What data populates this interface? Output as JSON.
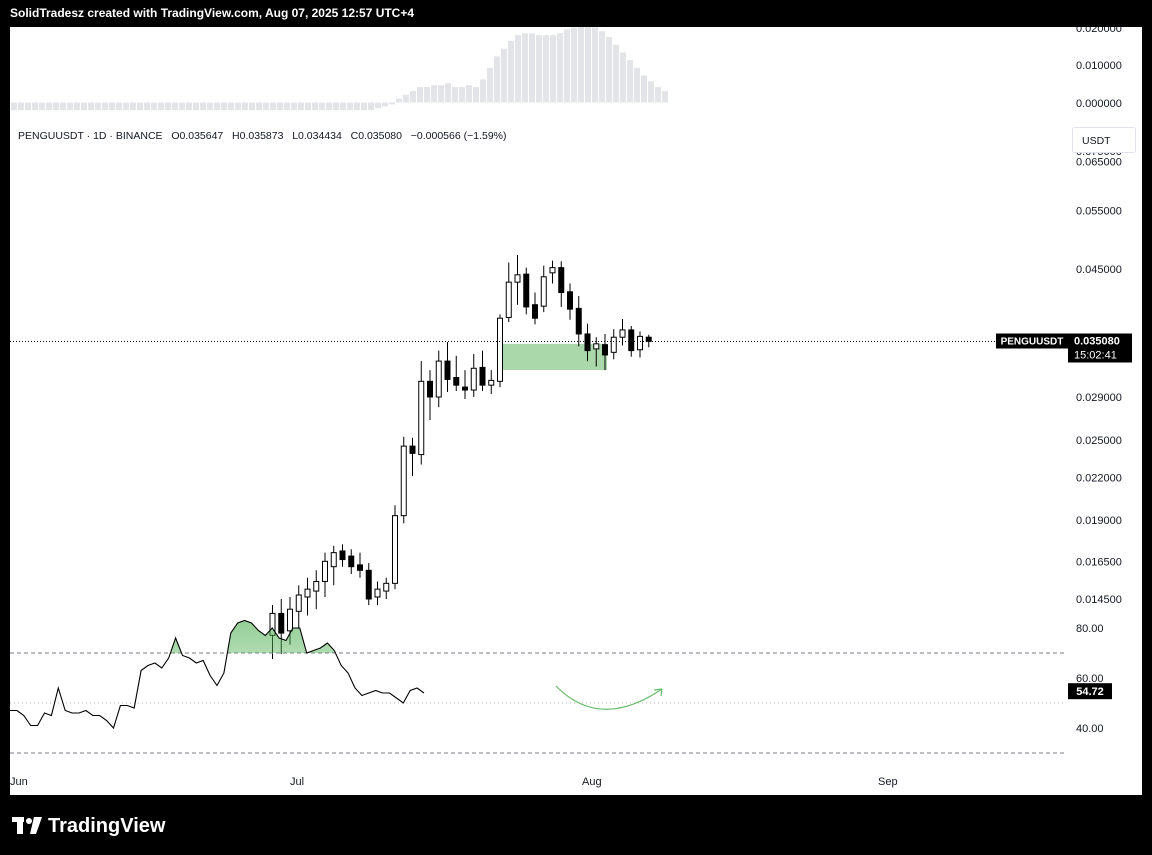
{
  "header": {
    "caption": "SolidTradesz created with TradingView.com, Aug 07, 2025 12:57 UTC+4"
  },
  "legend": {
    "symbol": "PENGUUSDT",
    "interval": "1D",
    "exchange": "BINANCE",
    "open": "O0.035647",
    "high": "H0.035873",
    "low": "L0.034434",
    "close": "C0.035080",
    "change": "−0.000566 (−1.59%)"
  },
  "currency_button": "USDT",
  "price_badge": {
    "symbol": "PENGUUSDT",
    "price": "0.035080",
    "countdown": "15:02:41"
  },
  "rsi_badge": "54.72",
  "brand": {
    "name": "TradingView"
  },
  "colors": {
    "up_candle": "#ffffff",
    "down_candle": "#000000",
    "zone": "#a5d6a7",
    "rsi_fill": "#4caf50",
    "arrow": "#66bb6a"
  },
  "chart_data": [
    {
      "type": "bar",
      "panel": "histogram",
      "y_tick_labels": [
        "0.020000",
        "0.010000",
        "0.000000"
      ],
      "values": [
        -0.002,
        -0.002,
        -0.002,
        -0.002,
        -0.002,
        -0.002,
        -0.002,
        -0.002,
        -0.002,
        -0.002,
        -0.002,
        -0.002,
        -0.002,
        -0.002,
        -0.002,
        -0.002,
        -0.002,
        -0.002,
        -0.002,
        -0.002,
        -0.002,
        -0.002,
        -0.002,
        -0.002,
        -0.002,
        -0.002,
        -0.002,
        -0.002,
        -0.002,
        -0.002,
        -0.002,
        -0.002,
        -0.002,
        -0.002,
        -0.002,
        -0.002,
        -0.002,
        -0.002,
        -0.002,
        -0.002,
        -0.002,
        -0.002,
        -0.002,
        -0.002,
        -0.002,
        -0.002,
        -0.002,
        -0.002,
        -0.002,
        -0.002,
        -0.002,
        -0.002,
        -0.0015,
        -0.001,
        -0.0005,
        0.001,
        0.002,
        0.003,
        0.004,
        0.004,
        0.0045,
        0.0045,
        0.005,
        0.004,
        0.004,
        0.0045,
        0.004,
        0.006,
        0.009,
        0.012,
        0.014,
        0.016,
        0.0175,
        0.018,
        0.018,
        0.0175,
        0.0175,
        0.0175,
        0.018,
        0.019,
        0.0195,
        0.02,
        0.02,
        0.0195,
        0.0185,
        0.017,
        0.015,
        0.013,
        0.011,
        0.009,
        0.007,
        0.0055,
        0.004,
        0.003
      ]
    },
    {
      "type": "candlestick",
      "panel": "price",
      "symbol": "PENGUUSDT",
      "scale": "log",
      "y_tick_labels": [
        "0.075000",
        "0.065000",
        "0.055000",
        "0.045000",
        "0.029000",
        "0.025000",
        "0.022000",
        "0.019000",
        "0.016500",
        "0.014500"
      ],
      "x_tick_labels": [
        "Jun",
        "Jul",
        "Aug",
        "Sep"
      ],
      "candles": [
        {
          "o": 0.0128,
          "h": 0.0142,
          "l": 0.0118,
          "c": 0.0138
        },
        {
          "o": 0.0138,
          "h": 0.0145,
          "l": 0.012,
          "c": 0.0129
        },
        {
          "o": 0.013,
          "h": 0.0146,
          "l": 0.0124,
          "c": 0.014
        },
        {
          "o": 0.0139,
          "h": 0.0152,
          "l": 0.0131,
          "c": 0.0147
        },
        {
          "o": 0.0146,
          "h": 0.0156,
          "l": 0.0137,
          "c": 0.015
        },
        {
          "o": 0.0149,
          "h": 0.016,
          "l": 0.014,
          "c": 0.0154
        },
        {
          "o": 0.0154,
          "h": 0.017,
          "l": 0.0146,
          "c": 0.0165
        },
        {
          "o": 0.0162,
          "h": 0.0174,
          "l": 0.0152,
          "c": 0.017
        },
        {
          "o": 0.0171,
          "h": 0.0175,
          "l": 0.0162,
          "c": 0.0166
        },
        {
          "o": 0.0168,
          "h": 0.0172,
          "l": 0.0158,
          "c": 0.0162
        },
        {
          "o": 0.0163,
          "h": 0.017,
          "l": 0.0156,
          "c": 0.016
        },
        {
          "o": 0.016,
          "h": 0.0164,
          "l": 0.0142,
          "c": 0.0145
        },
        {
          "o": 0.0146,
          "h": 0.0154,
          "l": 0.0142,
          "c": 0.015
        },
        {
          "o": 0.0149,
          "h": 0.0156,
          "l": 0.0145,
          "c": 0.0153
        },
        {
          "o": 0.0153,
          "h": 0.02,
          "l": 0.015,
          "c": 0.0193
        },
        {
          "o": 0.0193,
          "h": 0.0253,
          "l": 0.0188,
          "c": 0.0245
        },
        {
          "o": 0.0245,
          "h": 0.0252,
          "l": 0.0221,
          "c": 0.0239
        },
        {
          "o": 0.0238,
          "h": 0.0328,
          "l": 0.023,
          "c": 0.0306
        },
        {
          "o": 0.0306,
          "h": 0.0318,
          "l": 0.0268,
          "c": 0.029
        },
        {
          "o": 0.029,
          "h": 0.034,
          "l": 0.028,
          "c": 0.0328
        },
        {
          "o": 0.0328,
          "h": 0.035,
          "l": 0.0295,
          "c": 0.0308
        },
        {
          "o": 0.031,
          "h": 0.0334,
          "l": 0.0296,
          "c": 0.0302
        },
        {
          "o": 0.03,
          "h": 0.0318,
          "l": 0.0288,
          "c": 0.0297
        },
        {
          "o": 0.0297,
          "h": 0.0336,
          "l": 0.029,
          "c": 0.032
        },
        {
          "o": 0.0321,
          "h": 0.034,
          "l": 0.0296,
          "c": 0.0302
        },
        {
          "o": 0.0302,
          "h": 0.0318,
          "l": 0.0293,
          "c": 0.0307
        },
        {
          "o": 0.0306,
          "h": 0.0385,
          "l": 0.03,
          "c": 0.038
        },
        {
          "o": 0.0381,
          "h": 0.046,
          "l": 0.0375,
          "c": 0.043
        },
        {
          "o": 0.043,
          "h": 0.0472,
          "l": 0.0398,
          "c": 0.0441
        },
        {
          "o": 0.0442,
          "h": 0.0452,
          "l": 0.0385,
          "c": 0.0395
        },
        {
          "o": 0.0398,
          "h": 0.0415,
          "l": 0.0372,
          "c": 0.038
        },
        {
          "o": 0.0396,
          "h": 0.0455,
          "l": 0.0388,
          "c": 0.0438
        },
        {
          "o": 0.0444,
          "h": 0.0463,
          "l": 0.0428,
          "c": 0.0452
        },
        {
          "o": 0.0452,
          "h": 0.0462,
          "l": 0.0395,
          "c": 0.0415
        },
        {
          "o": 0.0416,
          "h": 0.0428,
          "l": 0.0378,
          "c": 0.0392
        },
        {
          "o": 0.0393,
          "h": 0.041,
          "l": 0.0345,
          "c": 0.036
        },
        {
          "o": 0.036,
          "h": 0.0373,
          "l": 0.0328,
          "c": 0.034
        },
        {
          "o": 0.0342,
          "h": 0.0356,
          "l": 0.0322,
          "c": 0.0348
        },
        {
          "o": 0.0347,
          "h": 0.036,
          "l": 0.0318,
          "c": 0.0335
        },
        {
          "o": 0.0338,
          "h": 0.0366,
          "l": 0.033,
          "c": 0.0356
        },
        {
          "o": 0.0356,
          "h": 0.0379,
          "l": 0.0346,
          "c": 0.0365
        },
        {
          "o": 0.0365,
          "h": 0.037,
          "l": 0.0333,
          "c": 0.034
        },
        {
          "o": 0.0341,
          "h": 0.0363,
          "l": 0.0332,
          "c": 0.0357
        },
        {
          "o": 0.0356,
          "h": 0.0359,
          "l": 0.0344,
          "c": 0.0351
        }
      ],
      "zones": [
        {
          "from_candle": 26,
          "to_candle": 38,
          "y_from": 0.0318,
          "y_to": 0.0348
        }
      ],
      "last_price": 0.03508
    },
    {
      "type": "line",
      "panel": "rsi",
      "y_tick_labels": [
        "80.00",
        "60.00",
        "40.00"
      ],
      "levels": [
        70,
        50,
        30
      ],
      "values": [
        47,
        47,
        45,
        41,
        41,
        46,
        45,
        56,
        47,
        46,
        46,
        47,
        45,
        45,
        43,
        40,
        49,
        49,
        48,
        63,
        65,
        66,
        64,
        68,
        76,
        69,
        68,
        66,
        67,
        61,
        57,
        62,
        78,
        82,
        83,
        82,
        79,
        77,
        80,
        76,
        75,
        80,
        80,
        70,
        71,
        72,
        74,
        71,
        65,
        62,
        56,
        53,
        54,
        55,
        54,
        54,
        52,
        50,
        55,
        56,
        54
      ],
      "arrow": "curved-up"
    }
  ]
}
